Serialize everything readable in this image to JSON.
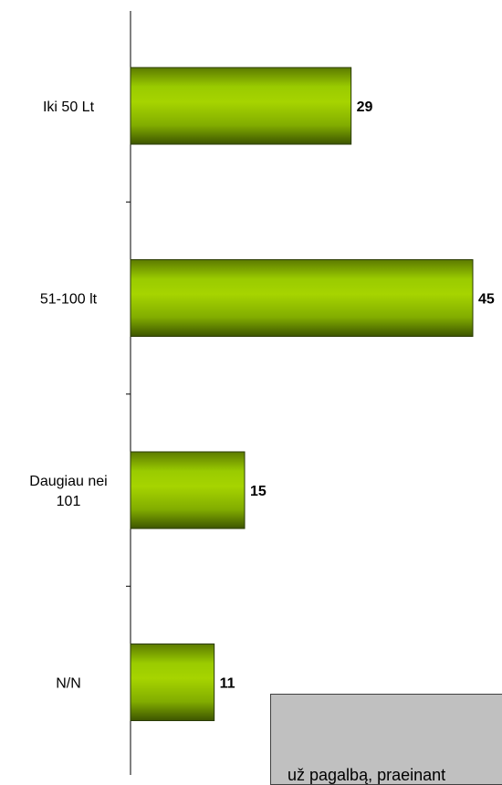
{
  "chart_data": {
    "type": "bar",
    "orientation": "horizontal",
    "categories": [
      [
        "Iki 50 Lt"
      ],
      [
        "51-100 lt"
      ],
      [
        "Daugiau nei",
        "101"
      ],
      [
        "N/N"
      ]
    ],
    "values": [
      29,
      45,
      15,
      11
    ],
    "xlim": [
      0,
      50
    ],
    "grid": false,
    "legend": "none",
    "bar_color": "#8fbf00",
    "bar_color_dark": "#3d5500"
  },
  "note": {
    "text": "už pagalbą, praeinant"
  }
}
